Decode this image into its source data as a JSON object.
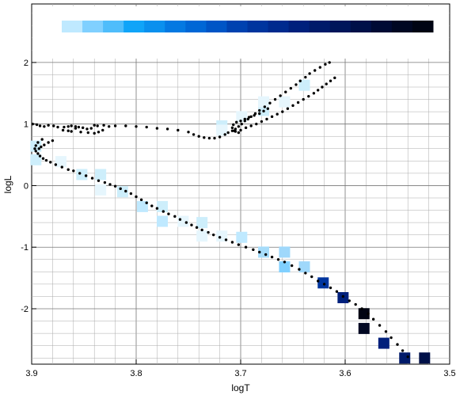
{
  "chart_data": {
    "type": "scatter",
    "xlabel": "logT",
    "ylabel": "logL",
    "xlim": [
      3.9,
      3.5
    ],
    "ylim": [
      -2.9,
      2.95
    ],
    "x_ticks": [
      3.9,
      3.8,
      3.7,
      3.6,
      3.5
    ],
    "x_tick_labels": [
      "3.9",
      "3.8",
      "3.7",
      "3.6",
      "3.5"
    ],
    "y_ticks": [
      2,
      1,
      0,
      -1,
      -2
    ],
    "y_tick_labels": [
      "2",
      "1",
      "0",
      "-1",
      "-2"
    ],
    "grid": true,
    "colorbar": [
      "#bfe9ff",
      "#80d0ff",
      "#4fbdfb",
      "#10a4f8",
      "#0a90ee",
      "#0479e2",
      "#0067d6",
      "#0055c6",
      "#0042b0",
      "#00359e",
      "#002a8e",
      "#00207c",
      "#001a6a",
      "#00155a",
      "#001048",
      "#000a34",
      "#000722",
      "#000413"
    ],
    "density_cells": [
      {
        "x": 3.896,
        "y": 0.64,
        "color": "#cdeefb"
      },
      {
        "x": 3.896,
        "y": 0.42,
        "color": "#cdeefb"
      },
      {
        "x": 3.872,
        "y": 0.39,
        "color": "#e6f6fd"
      },
      {
        "x": 3.852,
        "y": 0.18,
        "color": "#cdeefb"
      },
      {
        "x": 3.834,
        "y": 0.18,
        "color": "#cdeefb"
      },
      {
        "x": 3.834,
        "y": -0.07,
        "color": "#e6f6fd"
      },
      {
        "x": 3.813,
        "y": -0.1,
        "color": "#cdeefb"
      },
      {
        "x": 3.794,
        "y": -0.34,
        "color": "#bfe9ff"
      },
      {
        "x": 3.775,
        "y": -0.34,
        "color": "#cdeefb"
      },
      {
        "x": 3.775,
        "y": -0.58,
        "color": "#bfe9ff"
      },
      {
        "x": 3.755,
        "y": -0.58,
        "color": "#e6f6fd"
      },
      {
        "x": 3.737,
        "y": -0.6,
        "color": "#cdeefb"
      },
      {
        "x": 3.737,
        "y": -0.82,
        "color": "#e6f6fd"
      },
      {
        "x": 3.718,
        "y": -0.82,
        "color": "#e6f6fd"
      },
      {
        "x": 3.699,
        "y": -0.84,
        "color": "#bfe9ff"
      },
      {
        "x": 3.678,
        "y": -1.08,
        "color": "#a6dcfa"
      },
      {
        "x": 3.658,
        "y": -1.08,
        "color": "#9fd8fb"
      },
      {
        "x": 3.658,
        "y": -1.32,
        "color": "#80d0ff"
      },
      {
        "x": 3.639,
        "y": -1.32,
        "color": "#9fd8fb"
      },
      {
        "x": 3.621,
        "y": -1.58,
        "color": "#00359e"
      },
      {
        "x": 3.602,
        "y": -1.82,
        "color": "#00207c"
      },
      {
        "x": 3.582,
        "y": -2.08,
        "color": "#000413"
      },
      {
        "x": 3.582,
        "y": -2.32,
        "color": "#000722"
      },
      {
        "x": 3.563,
        "y": -2.56,
        "color": "#00207c"
      },
      {
        "x": 3.543,
        "y": -2.8,
        "color": "#001a6a"
      },
      {
        "x": 3.524,
        "y": -2.8,
        "color": "#001048"
      },
      {
        "x": 3.718,
        "y": 0.97,
        "color": "#cdeefb"
      },
      {
        "x": 3.718,
        "y": 0.9,
        "color": "#e6f6fd"
      },
      {
        "x": 3.699,
        "y": 1.12,
        "color": "#e6f6fd"
      },
      {
        "x": 3.678,
        "y": 1.22,
        "color": "#cdeefb"
      },
      {
        "x": 3.678,
        "y": 1.36,
        "color": "#e6f6fd"
      },
      {
        "x": 3.658,
        "y": 1.36,
        "color": "#e6f6fd"
      },
      {
        "x": 3.639,
        "y": 1.63,
        "color": "#cdeefb"
      }
    ],
    "track_points": [
      [
        3.899,
        1.0
      ],
      [
        3.895,
        0.99
      ],
      [
        3.892,
        0.97
      ],
      [
        3.888,
        0.96
      ],
      [
        3.884,
        0.98
      ],
      [
        3.879,
        0.97
      ],
      [
        3.875,
        0.95
      ],
      [
        3.869,
        0.95
      ],
      [
        3.865,
        0.96
      ],
      [
        3.862,
        0.97
      ],
      [
        3.858,
        0.96
      ],
      [
        3.855,
        0.95
      ],
      [
        3.851,
        0.94
      ],
      [
        3.847,
        0.92
      ],
      [
        3.843,
        0.93
      ],
      [
        3.84,
        0.98
      ],
      [
        3.837,
        0.97
      ],
      [
        3.831,
        0.98
      ],
      [
        3.826,
        0.96
      ],
      [
        3.82,
        0.97
      ],
      [
        3.81,
        0.97
      ],
      [
        3.8,
        0.96
      ],
      [
        3.79,
        0.95
      ],
      [
        3.78,
        0.93
      ],
      [
        3.77,
        0.92
      ],
      [
        3.76,
        0.9
      ],
      [
        3.75,
        0.87
      ],
      [
        3.745,
        0.83
      ],
      [
        3.74,
        0.8
      ],
      [
        3.735,
        0.78
      ],
      [
        3.73,
        0.77
      ],
      [
        3.725,
        0.77
      ],
      [
        3.72,
        0.79
      ],
      [
        3.715,
        0.83
      ],
      [
        3.712,
        0.86
      ],
      [
        3.708,
        0.89
      ],
      [
        3.705,
        0.92
      ],
      [
        3.702,
        0.96
      ],
      [
        3.699,
        1.0
      ],
      [
        3.696,
        1.05
      ],
      [
        3.693,
        1.08
      ],
      [
        3.69,
        1.12
      ],
      [
        3.686,
        1.17
      ],
      [
        3.682,
        1.22
      ],
      [
        3.677,
        1.28
      ],
      [
        3.672,
        1.34
      ],
      [
        3.667,
        1.4
      ],
      [
        3.662,
        1.46
      ],
      [
        3.657,
        1.52
      ],
      [
        3.652,
        1.58
      ],
      [
        3.647,
        1.64
      ],
      [
        3.643,
        1.7
      ],
      [
        3.638,
        1.76
      ],
      [
        3.634,
        1.82
      ],
      [
        3.629,
        1.87
      ],
      [
        3.624,
        1.92
      ],
      [
        3.619,
        1.97
      ],
      [
        3.615,
        2.0
      ],
      [
        3.87,
        0.9
      ],
      [
        3.862,
        0.88
      ],
      [
        3.853,
        0.87
      ],
      [
        3.846,
        0.86
      ],
      [
        3.84,
        0.85
      ],
      [
        3.836,
        0.87
      ],
      [
        3.832,
        0.9
      ],
      [
        3.858,
        0.93
      ],
      [
        3.865,
        0.89
      ],
      [
        3.705,
        0.88
      ],
      [
        3.7,
        0.9
      ],
      [
        3.695,
        0.94
      ],
      [
        3.69,
        0.97
      ],
      [
        3.685,
        1.0
      ],
      [
        3.68,
        1.04
      ],
      [
        3.675,
        1.08
      ],
      [
        3.67,
        1.12
      ],
      [
        3.665,
        1.16
      ],
      [
        3.66,
        1.2
      ],
      [
        3.655,
        1.25
      ],
      [
        3.65,
        1.3
      ],
      [
        3.645,
        1.35
      ],
      [
        3.64,
        1.4
      ],
      [
        3.635,
        1.45
      ],
      [
        3.63,
        1.5
      ],
      [
        3.626,
        1.55
      ],
      [
        3.622,
        1.6
      ],
      [
        3.618,
        1.65
      ],
      [
        3.614,
        1.7
      ],
      [
        3.61,
        1.75
      ],
      [
        3.702,
        0.86
      ],
      [
        3.706,
        0.89
      ],
      [
        3.708,
        0.94
      ],
      [
        3.707,
        0.99
      ],
      [
        3.704,
        1.03
      ],
      [
        3.7,
        1.05
      ],
      [
        3.696,
        1.08
      ],
      [
        3.692,
        1.11
      ],
      [
        3.687,
        1.14
      ],
      [
        3.682,
        1.17
      ],
      [
        3.678,
        1.21
      ],
      [
        3.674,
        1.25
      ],
      [
        3.89,
        0.75
      ],
      [
        3.894,
        0.7
      ],
      [
        3.896,
        0.65
      ],
      [
        3.897,
        0.6
      ],
      [
        3.896,
        0.56
      ],
      [
        3.894,
        0.52
      ],
      [
        3.892,
        0.48
      ],
      [
        3.889,
        0.44
      ],
      [
        3.886,
        0.41
      ],
      [
        3.882,
        0.38
      ],
      [
        3.877,
        0.34
      ],
      [
        3.871,
        0.3
      ],
      [
        3.865,
        0.26
      ],
      [
        3.86,
        0.24
      ],
      [
        3.854,
        0.2
      ],
      [
        3.848,
        0.16
      ],
      [
        3.842,
        0.12
      ],
      [
        3.836,
        0.08
      ],
      [
        3.83,
        0.05
      ],
      [
        3.825,
        0.02
      ],
      [
        3.82,
        -0.01
      ],
      [
        3.815,
        -0.05
      ],
      [
        3.81,
        -0.09
      ],
      [
        3.805,
        -0.13
      ],
      [
        3.8,
        -0.18
      ],
      [
        3.795,
        -0.23
      ],
      [
        3.79,
        -0.28
      ],
      [
        3.785,
        -0.33
      ],
      [
        3.78,
        -0.37
      ],
      [
        3.774,
        -0.42
      ],
      [
        3.769,
        -0.46
      ],
      [
        3.763,
        -0.5
      ],
      [
        3.758,
        -0.55
      ],
      [
        3.752,
        -0.6
      ],
      [
        3.747,
        -0.64
      ],
      [
        3.742,
        -0.68
      ],
      [
        3.737,
        -0.72
      ],
      [
        3.731,
        -0.76
      ],
      [
        3.726,
        -0.8
      ],
      [
        3.72,
        -0.84
      ],
      [
        3.714,
        -0.88
      ],
      [
        3.708,
        -0.92
      ],
      [
        3.702,
        -0.96
      ],
      [
        3.695,
        -1.0
      ],
      [
        3.688,
        -1.04
      ],
      [
        3.682,
        -1.08
      ],
      [
        3.676,
        -1.12
      ],
      [
        3.67,
        -1.16
      ],
      [
        3.664,
        -1.2
      ],
      [
        3.658,
        -1.24
      ],
      [
        3.651,
        -1.3
      ],
      [
        3.644,
        -1.36
      ],
      [
        3.638,
        -1.42
      ],
      [
        3.632,
        -1.48
      ],
      [
        3.626,
        -1.55
      ],
      [
        3.62,
        -1.6
      ],
      [
        3.614,
        -1.66
      ],
      [
        3.608,
        -1.72
      ],
      [
        3.602,
        -1.8
      ],
      [
        3.596,
        -1.87
      ],
      [
        3.59,
        -1.93
      ],
      [
        3.584,
        -2.0
      ],
      [
        3.578,
        -2.08
      ],
      [
        3.573,
        -2.17
      ],
      [
        3.567,
        -2.27
      ],
      [
        3.561,
        -2.37
      ],
      [
        3.556,
        -2.47
      ],
      [
        3.55,
        -2.58
      ],
      [
        3.545,
        -2.68
      ],
      [
        3.54,
        -2.78
      ],
      [
        3.893,
        0.6
      ],
      [
        3.891,
        0.63
      ],
      [
        3.888,
        0.66
      ],
      [
        3.884,
        0.7
      ],
      [
        3.88,
        0.73
      ]
    ]
  }
}
